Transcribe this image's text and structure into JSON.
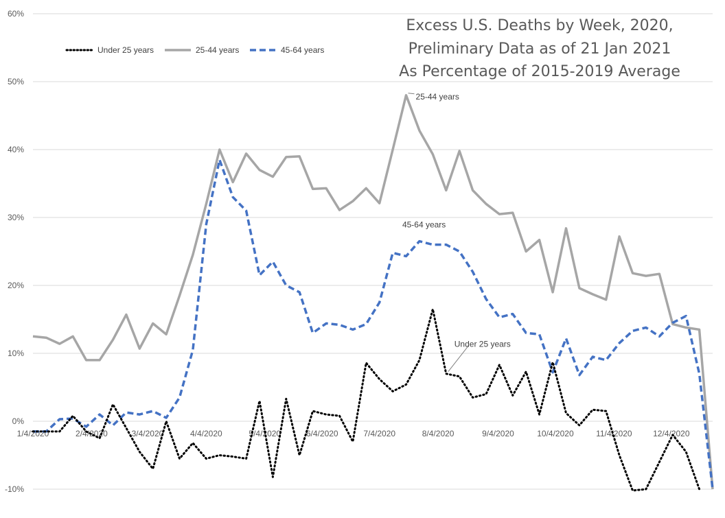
{
  "chart_data": {
    "type": "line",
    "title_lines": [
      "Excess U.S. Deaths by Week, 2020,",
      "Preliminary Data as of 21 Jan 2021",
      "As Percentage of 2015-2019 Average"
    ],
    "xlabel": "",
    "ylabel": "",
    "ylim": [
      -10,
      60
    ],
    "y_ticks": [
      -10,
      0,
      10,
      20,
      30,
      40,
      50,
      60
    ],
    "y_tick_labels": [
      "-10%",
      "0%",
      "10%",
      "20%",
      "30%",
      "40%",
      "50%",
      "60%"
    ],
    "x_tick_labels": [
      "1/4/2020",
      "2/4/2020",
      "3/4/2020",
      "4/4/2020",
      "5/4/2020",
      "6/4/2020",
      "7/4/2020",
      "8/4/2020",
      "9/4/2020",
      "10/4/2020",
      "11/4/2020",
      "12/4/2020"
    ],
    "x_tick_weeks": [
      0,
      4.4,
      8.6,
      13,
      17.4,
      21.7,
      26,
      30.4,
      34.9,
      39.2,
      43.6,
      47.9
    ],
    "grid": true,
    "legend_position": "top-left",
    "series": [
      {
        "name": "Under 25 years",
        "color": "#000000",
        "style": "dotted",
        "values": [
          -1.5,
          -1.5,
          -1.5,
          0.8,
          -1.5,
          -2.5,
          2.5,
          -1.0,
          -4.5,
          -7.0,
          0.0,
          -5.5,
          -3.2,
          -5.5,
          -5.0,
          -5.2,
          -5.5,
          3.0,
          -8.2,
          3.3,
          -5.0,
          1.5,
          1.0,
          0.8,
          -3.0,
          8.6,
          6.2,
          4.4,
          5.4,
          9.0,
          16.5,
          7.0,
          6.6,
          3.5,
          4.0,
          8.3,
          3.8,
          7.3,
          1.0,
          8.7,
          1.2,
          -0.6,
          1.7,
          1.5,
          -5.0,
          -10.2,
          -10.0,
          -6.0,
          -2.0,
          -4.5,
          -10.0
        ]
      },
      {
        "name": "25-44 years",
        "color": "#a6a6a6",
        "style": "solid",
        "values": [
          12.5,
          12.3,
          11.4,
          12.5,
          9.0,
          9.0,
          12.0,
          15.7,
          10.7,
          14.4,
          12.8,
          18.5,
          24.5,
          32.0,
          40.0,
          35.2,
          39.4,
          37.0,
          36.0,
          38.9,
          39.0,
          34.2,
          34.3,
          31.1,
          32.4,
          34.3,
          32.1,
          40.0,
          48.0,
          42.8,
          39.3,
          34.0,
          39.8,
          34.0,
          32.0,
          30.5,
          30.7,
          25.0,
          26.7,
          19.0,
          28.4,
          19.6,
          18.7,
          17.9,
          27.2,
          21.8,
          21.4,
          21.7,
          14.3,
          13.8,
          13.5,
          -10.0
        ]
      },
      {
        "name": "45-64 years",
        "color": "#4472c4",
        "style": "dashed",
        "values": [
          -1.5,
          -1.5,
          0.3,
          0.4,
          -0.8,
          1.0,
          -0.6,
          1.3,
          1.0,
          1.5,
          0.5,
          3.5,
          10.5,
          29.0,
          38.5,
          33.0,
          31.0,
          21.5,
          23.5,
          20.0,
          19.0,
          13.0,
          14.4,
          14.2,
          13.5,
          14.3,
          17.5,
          24.8,
          24.3,
          26.5,
          26.0,
          26.0,
          25.0,
          22.0,
          18.0,
          15.3,
          15.8,
          13.0,
          12.8,
          7.2,
          12.2,
          6.8,
          9.5,
          9.0,
          11.5,
          13.3,
          13.8,
          12.5,
          14.5,
          15.5,
          7.0,
          -10.0
        ]
      }
    ],
    "annotations": [
      {
        "text": "25-44 years",
        "series": "25-44 years",
        "week": 28
      },
      {
        "text": "45-64 years",
        "series": "45-64 years",
        "week": 29
      },
      {
        "text": "Under 25 years",
        "series": "Under 25 years",
        "week": 31
      }
    ]
  }
}
